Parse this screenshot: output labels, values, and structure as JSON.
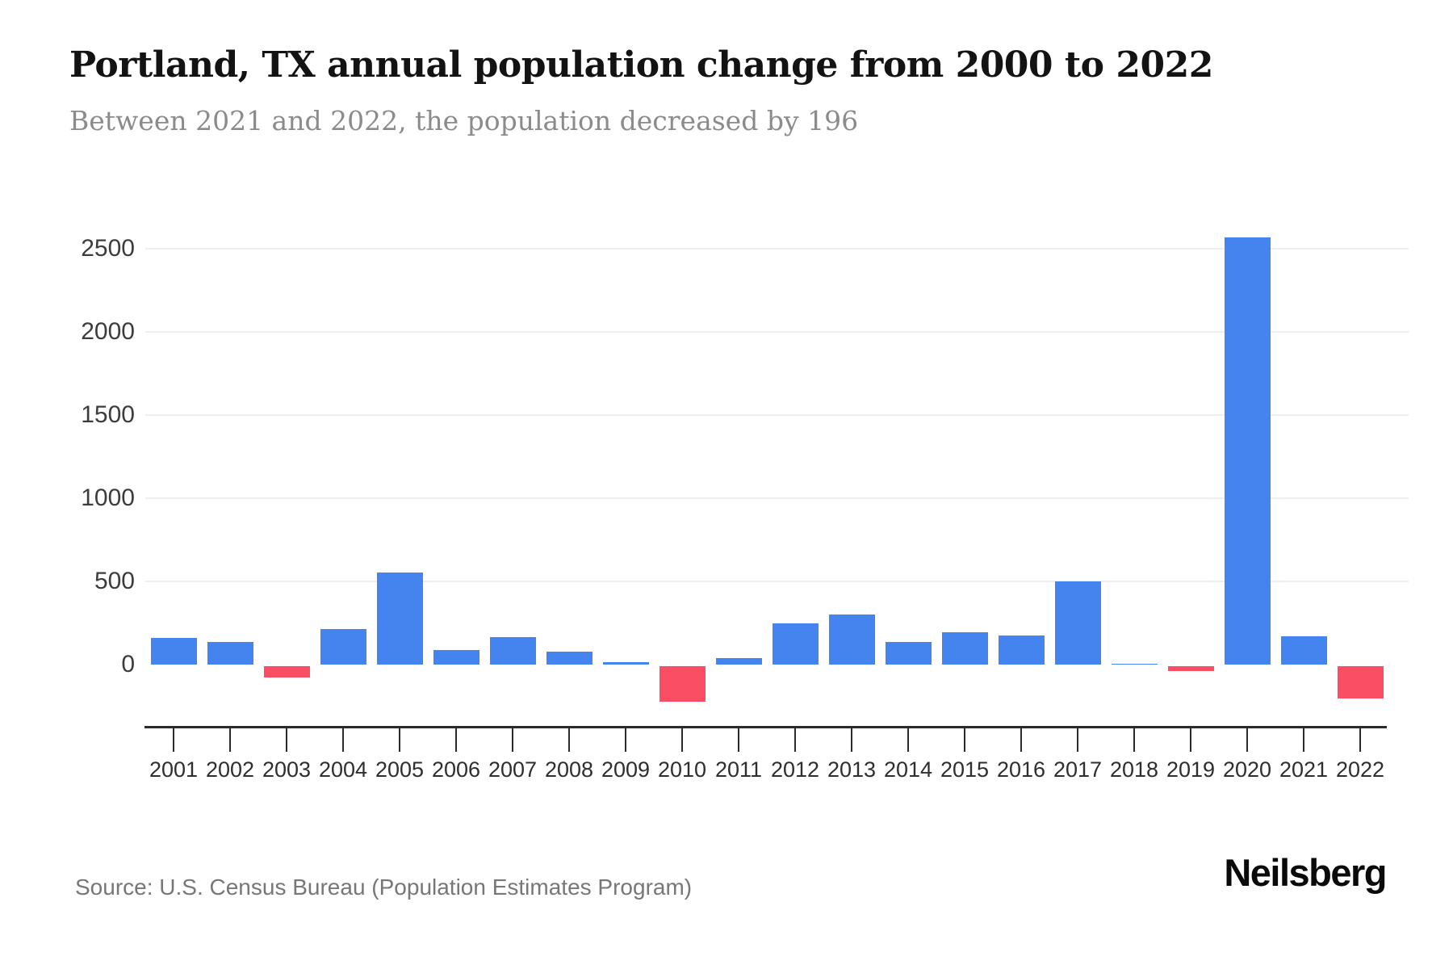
{
  "chart_data": {
    "type": "bar",
    "title": "Portland, TX annual population change from 2000 to 2022",
    "subtitle": "Between 2021 and 2022, the population decreased by 196",
    "categories": [
      "2001",
      "2002",
      "2003",
      "2004",
      "2005",
      "2006",
      "2007",
      "2008",
      "2009",
      "2010",
      "2011",
      "2012",
      "2013",
      "2014",
      "2015",
      "2016",
      "2017",
      "2018",
      "2019",
      "2020",
      "2021",
      "2022"
    ],
    "values": [
      158,
      136,
      -66,
      214,
      554,
      88,
      166,
      78,
      13,
      -212,
      41,
      250,
      303,
      138,
      192,
      177,
      500,
      5,
      -30,
      2570,
      170,
      -196
    ],
    "xlabel": "",
    "ylabel": "",
    "yticks": [
      0,
      500,
      1000,
      1500,
      2000,
      2500
    ],
    "ylim": [
      -250,
      2600
    ],
    "grid": true,
    "legend": "none",
    "colors": {
      "positive": "#4484ee",
      "negative": "#f94e63",
      "gridline": "#efefef",
      "axis": "#2b2b2b"
    }
  },
  "footer": {
    "source": "Source: U.S. Census Bureau (Population Estimates Program)",
    "brand": "Neilsberg"
  }
}
